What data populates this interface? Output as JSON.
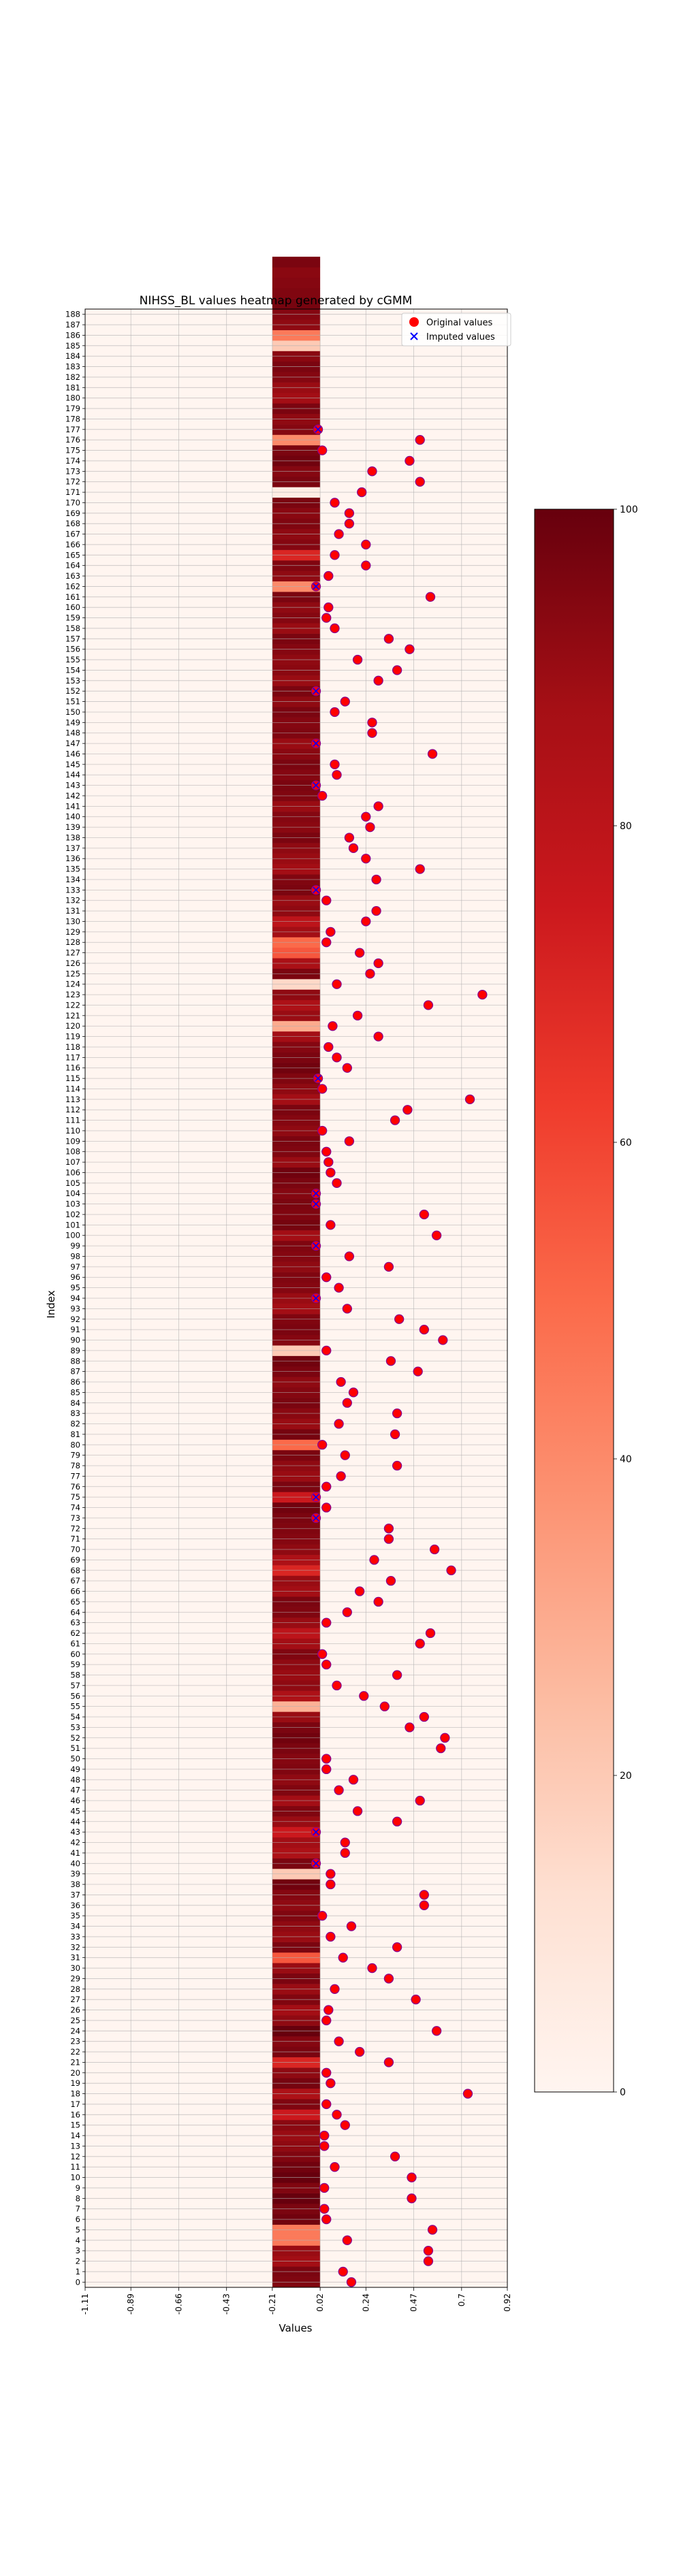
{
  "chart_data": {
    "type": "heatmap",
    "title": "NIHSS_BL values heatmap generated by cGMM",
    "xlabel": "Values",
    "ylabel": "Index",
    "x_ticks": [
      -1.11,
      -0.89,
      -0.66,
      -0.43,
      -0.21,
      0.02,
      0.24,
      0.47,
      0.7,
      0.92
    ],
    "x_tick_labels": [
      "-1.11",
      "-0.89",
      "-0.66",
      "-0.43",
      "-0.21",
      "0.02",
      "0.24",
      "0.47",
      "0.7",
      "0.92"
    ],
    "xlim": [
      -1.11,
      0.92
    ],
    "ylim": [
      0,
      188
    ],
    "grid": true,
    "colormap": "Reds",
    "colorbar": {
      "min": 0,
      "max": 100,
      "ticks": [
        0,
        20,
        40,
        60,
        80,
        100
      ]
    },
    "legend": {
      "position": "top-right",
      "entries": [
        {
          "label": "Original values",
          "marker": "circle",
          "color": "#ff0000"
        },
        {
          "label": "Imputed values",
          "marker": "x",
          "color": "#0000ff"
        }
      ]
    },
    "heat_column": {
      "x_range": [
        -0.21,
        0.02
      ]
    },
    "heat_values": [
      95,
      96,
      88,
      90,
      45,
      45,
      98,
      96,
      100,
      95,
      100,
      98,
      95,
      92,
      90,
      93,
      75,
      95,
      85,
      97,
      92,
      70,
      96,
      94,
      100,
      92,
      88,
      95,
      90,
      96,
      90,
      55,
      96,
      90,
      92,
      95,
      92,
      94,
      98,
      20,
      96,
      85,
      88,
      75,
      90,
      95,
      88,
      95,
      92,
      95,
      94,
      96,
      98,
      96,
      90,
      28,
      85,
      92,
      90,
      92,
      95,
      88,
      80,
      90,
      95,
      96,
      88,
      90,
      70,
      85,
      92,
      94,
      95,
      96,
      98,
      75,
      96,
      90,
      92,
      96,
      50,
      97,
      90,
      93,
      96,
      94,
      92,
      96,
      98,
      20,
      94,
      96,
      95,
      88,
      90,
      94,
      95,
      92,
      94,
      95,
      88,
      97,
      95,
      96,
      94,
      96,
      98,
      90,
      95,
      96,
      92,
      94,
      96,
      88,
      92,
      95,
      98,
      96,
      94,
      88,
      30,
      90,
      85,
      92,
      15,
      96,
      86,
      55,
      50,
      88,
      80,
      92,
      90,
      96,
      95,
      88,
      90,
      92,
      96,
      93,
      94,
      90,
      95,
      96,
      94,
      96,
      93,
      90,
      95,
      94,
      96,
      92,
      96,
      90,
      93,
      92,
      94,
      96,
      90,
      94,
      92,
      96,
      40,
      92,
      95,
      70,
      94,
      92,
      95,
      93,
      96,
      5,
      96,
      94,
      98,
      96,
      40,
      94,
      92,
      96,
      88,
      90,
      94,
      96,
      93,
      20,
      45,
      92,
      94,
      97,
      95,
      94,
      93,
      96
    ],
    "original_points": [
      {
        "index": 0,
        "value": 0.17
      },
      {
        "index": 1,
        "value": 0.13
      },
      {
        "index": 2,
        "value": 0.54
      },
      {
        "index": 3,
        "value": 0.54
      },
      {
        "index": 4,
        "value": 0.15
      },
      {
        "index": 5,
        "value": 0.56
      },
      {
        "index": 6,
        "value": 0.05
      },
      {
        "index": 7,
        "value": 0.04
      },
      {
        "index": 8,
        "value": 0.46
      },
      {
        "index": 9,
        "value": 0.04
      },
      {
        "index": 10,
        "value": 0.46
      },
      {
        "index": 11,
        "value": 0.09
      },
      {
        "index": 12,
        "value": 0.38
      },
      {
        "index": 13,
        "value": 0.04
      },
      {
        "index": 14,
        "value": 0.04
      },
      {
        "index": 15,
        "value": 0.14
      },
      {
        "index": 16,
        "value": 0.1
      },
      {
        "index": 17,
        "value": 0.05
      },
      {
        "index": 18,
        "value": 0.73
      },
      {
        "index": 19,
        "value": 0.07
      },
      {
        "index": 20,
        "value": 0.05
      },
      {
        "index": 21,
        "value": 0.35
      },
      {
        "index": 22,
        "value": 0.21
      },
      {
        "index": 23,
        "value": 0.11
      },
      {
        "index": 24,
        "value": 0.58
      },
      {
        "index": 25,
        "value": 0.05
      },
      {
        "index": 26,
        "value": 0.06
      },
      {
        "index": 27,
        "value": 0.48
      },
      {
        "index": 28,
        "value": 0.09
      },
      {
        "index": 29,
        "value": 0.35
      },
      {
        "index": 30,
        "value": 0.27
      },
      {
        "index": 31,
        "value": 0.13
      },
      {
        "index": 32,
        "value": 0.39
      },
      {
        "index": 33,
        "value": 0.07
      },
      {
        "index": 34,
        "value": 0.17
      },
      {
        "index": 35,
        "value": 0.03
      },
      {
        "index": 36,
        "value": 0.52
      },
      {
        "index": 37,
        "value": 0.52
      },
      {
        "index": 38,
        "value": 0.07
      },
      {
        "index": 39,
        "value": 0.07
      },
      {
        "index": 40,
        "value": 0.0
      },
      {
        "index": 41,
        "value": 0.14
      },
      {
        "index": 42,
        "value": 0.14
      },
      {
        "index": 43,
        "value": 0.0
      },
      {
        "index": 44,
        "value": 0.39
      },
      {
        "index": 45,
        "value": 0.2
      },
      {
        "index": 46,
        "value": 0.5
      },
      {
        "index": 47,
        "value": 0.11
      },
      {
        "index": 48,
        "value": 0.18
      },
      {
        "index": 49,
        "value": 0.05
      },
      {
        "index": 50,
        "value": 0.05
      },
      {
        "index": 51,
        "value": 0.6
      },
      {
        "index": 52,
        "value": 0.62
      },
      {
        "index": 53,
        "value": 0.45
      },
      {
        "index": 54,
        "value": 0.52
      },
      {
        "index": 55,
        "value": 0.33
      },
      {
        "index": 56,
        "value": 0.23
      },
      {
        "index": 57,
        "value": 0.1
      },
      {
        "index": 58,
        "value": 0.39
      },
      {
        "index": 59,
        "value": 0.05
      },
      {
        "index": 60,
        "value": 0.03
      },
      {
        "index": 61,
        "value": 0.5
      },
      {
        "index": 62,
        "value": 0.55
      },
      {
        "index": 63,
        "value": 0.05
      },
      {
        "index": 64,
        "value": 0.15
      },
      {
        "index": 65,
        "value": 0.3
      },
      {
        "index": 66,
        "value": 0.21
      },
      {
        "index": 67,
        "value": 0.36
      },
      {
        "index": 68,
        "value": 0.65
      },
      {
        "index": 69,
        "value": 0.28
      },
      {
        "index": 70,
        "value": 0.57
      },
      {
        "index": 71,
        "value": 0.35
      },
      {
        "index": 72,
        "value": 0.35
      },
      {
        "index": 73,
        "value": 0.0
      },
      {
        "index": 74,
        "value": 0.05
      },
      {
        "index": 75,
        "value": 0.0
      },
      {
        "index": 76,
        "value": 0.05
      },
      {
        "index": 77,
        "value": 0.12
      },
      {
        "index": 78,
        "value": 0.39
      },
      {
        "index": 79,
        "value": 0.14
      },
      {
        "index": 80,
        "value": 0.03
      },
      {
        "index": 81,
        "value": 0.38
      },
      {
        "index": 82,
        "value": 0.11
      },
      {
        "index": 83,
        "value": 0.39
      },
      {
        "index": 84,
        "value": 0.15
      },
      {
        "index": 85,
        "value": 0.18
      },
      {
        "index": 86,
        "value": 0.12
      },
      {
        "index": 87,
        "value": 0.49
      },
      {
        "index": 88,
        "value": 0.36
      },
      {
        "index": 89,
        "value": 0.05
      },
      {
        "index": 90,
        "value": 0.61
      },
      {
        "index": 91,
        "value": 0.52
      },
      {
        "index": 92,
        "value": 0.4
      },
      {
        "index": 93,
        "value": 0.15
      },
      {
        "index": 94,
        "value": 0.0
      },
      {
        "index": 95,
        "value": 0.11
      },
      {
        "index": 96,
        "value": 0.05
      },
      {
        "index": 97,
        "value": 0.35
      },
      {
        "index": 98,
        "value": 0.16
      },
      {
        "index": 99,
        "value": 0.0
      },
      {
        "index": 100,
        "value": 0.58
      },
      {
        "index": 101,
        "value": 0.07
      },
      {
        "index": 102,
        "value": 0.52
      },
      {
        "index": 103,
        "value": 0.0
      },
      {
        "index": 104,
        "value": 0.0
      },
      {
        "index": 105,
        "value": 0.1
      },
      {
        "index": 106,
        "value": 0.07
      },
      {
        "index": 107,
        "value": 0.06
      },
      {
        "index": 108,
        "value": 0.05
      },
      {
        "index": 109,
        "value": 0.16
      },
      {
        "index": 110,
        "value": 0.03
      },
      {
        "index": 111,
        "value": 0.38
      },
      {
        "index": 112,
        "value": 0.44
      },
      {
        "index": 113,
        "value": 0.74
      },
      {
        "index": 114,
        "value": 0.03
      },
      {
        "index": 115,
        "value": 0.01
      },
      {
        "index": 116,
        "value": 0.15
      },
      {
        "index": 117,
        "value": 0.1
      },
      {
        "index": 118,
        "value": 0.06
      },
      {
        "index": 119,
        "value": 0.3
      },
      {
        "index": 120,
        "value": 0.08
      },
      {
        "index": 121,
        "value": 0.2
      },
      {
        "index": 122,
        "value": 0.54
      },
      {
        "index": 123,
        "value": 0.8
      },
      {
        "index": 124,
        "value": 0.1
      },
      {
        "index": 125,
        "value": 0.26
      },
      {
        "index": 126,
        "value": 0.3
      },
      {
        "index": 127,
        "value": 0.21
      },
      {
        "index": 128,
        "value": 0.05
      },
      {
        "index": 129,
        "value": 0.07
      },
      {
        "index": 130,
        "value": 0.24
      },
      {
        "index": 131,
        "value": 0.29
      },
      {
        "index": 132,
        "value": 0.05
      },
      {
        "index": 133,
        "value": 0.0
      },
      {
        "index": 134,
        "value": 0.29
      },
      {
        "index": 135,
        "value": 0.5
      },
      {
        "index": 136,
        "value": 0.24
      },
      {
        "index": 137,
        "value": 0.18
      },
      {
        "index": 138,
        "value": 0.16
      },
      {
        "index": 139,
        "value": 0.26
      },
      {
        "index": 140,
        "value": 0.24
      },
      {
        "index": 141,
        "value": 0.3
      },
      {
        "index": 142,
        "value": 0.03
      },
      {
        "index": 143,
        "value": 0.0
      },
      {
        "index": 144,
        "value": 0.1
      },
      {
        "index": 145,
        "value": 0.09
      },
      {
        "index": 146,
        "value": 0.56
      },
      {
        "index": 147,
        "value": 0.0
      },
      {
        "index": 148,
        "value": 0.27
      },
      {
        "index": 149,
        "value": 0.27
      },
      {
        "index": 150,
        "value": 0.09
      },
      {
        "index": 151,
        "value": 0.14
      },
      {
        "index": 152,
        "value": 0.0
      },
      {
        "index": 153,
        "value": 0.3
      },
      {
        "index": 154,
        "value": 0.39
      },
      {
        "index": 155,
        "value": 0.2
      },
      {
        "index": 156,
        "value": 0.45
      },
      {
        "index": 157,
        "value": 0.35
      },
      {
        "index": 158,
        "value": 0.09
      },
      {
        "index": 159,
        "value": 0.05
      },
      {
        "index": 160,
        "value": 0.06
      },
      {
        "index": 161,
        "value": 0.55
      },
      {
        "index": 162,
        "value": 0.0
      },
      {
        "index": 163,
        "value": 0.06
      },
      {
        "index": 164,
        "value": 0.24
      },
      {
        "index": 165,
        "value": 0.09
      },
      {
        "index": 166,
        "value": 0.24
      },
      {
        "index": 167,
        "value": 0.11
      },
      {
        "index": 168,
        "value": 0.16
      },
      {
        "index": 169,
        "value": 0.16
      },
      {
        "index": 170,
        "value": 0.09
      },
      {
        "index": 171,
        "value": 0.22
      },
      {
        "index": 172,
        "value": 0.5
      },
      {
        "index": 173,
        "value": 0.27
      },
      {
        "index": 174,
        "value": 0.45
      },
      {
        "index": 175,
        "value": 0.03
      },
      {
        "index": 176,
        "value": 0.5
      },
      {
        "index": 177,
        "value": 0.01
      }
    ],
    "imputed_points": [
      {
        "index": 40,
        "value": 0.0
      },
      {
        "index": 43,
        "value": 0.0
      },
      {
        "index": 73,
        "value": 0.0
      },
      {
        "index": 75,
        "value": 0.0
      },
      {
        "index": 94,
        "value": 0.0
      },
      {
        "index": 99,
        "value": 0.0
      },
      {
        "index": 103,
        "value": 0.0
      },
      {
        "index": 104,
        "value": 0.0
      },
      {
        "index": 115,
        "value": 0.01
      },
      {
        "index": 133,
        "value": 0.0
      },
      {
        "index": 143,
        "value": 0.0
      },
      {
        "index": 147,
        "value": 0.0
      },
      {
        "index": 152,
        "value": 0.0
      },
      {
        "index": 162,
        "value": 0.0
      },
      {
        "index": 177,
        "value": 0.01
      }
    ]
  }
}
